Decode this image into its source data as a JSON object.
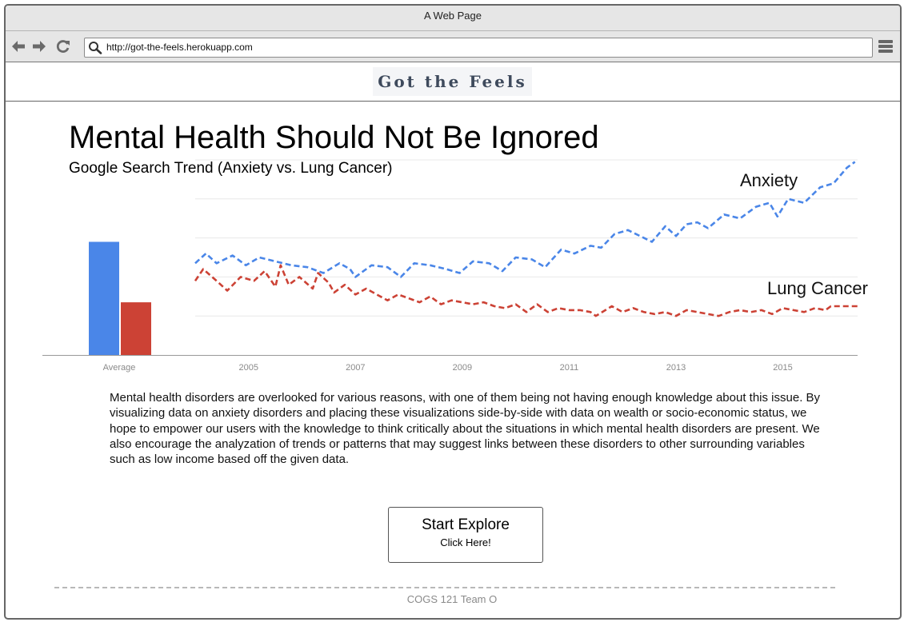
{
  "window": {
    "title": "A Web Page",
    "url": "http://got-the-feels.herokuapp.com",
    "icons": [
      "back-arrow-icon",
      "forward-arrow-icon",
      "reload-icon",
      "search-icon",
      "menu-icon"
    ]
  },
  "site": {
    "brand": "Got the Feels"
  },
  "main": {
    "title": "Mental Health Should Not Be Ignored",
    "subtitle": "Google Search Trend (Anxiety vs. Lung Cancer)",
    "description": "Mental health disorders are overlooked for various reasons, with one of them being not having enough knowledge about this issue. By visualizing data on anxiety disorders and placing these visualizations side-by-side with data on wealth or socio-economic status, we hope to empower our users with the knowledge to think critically about the situations in which mental health disorders are present. We also encourage the analyzation of trends or patterns that may suggest links between these disorders to other surrounding variables such as low income based off the given data.",
    "cta_title": "Start Explore",
    "cta_subtitle": "Click Here!"
  },
  "footer": {
    "text": "COGS 121 Team O"
  },
  "chart_data": {
    "type": "line",
    "x_tick_labels": [
      "2005",
      "2007",
      "2009",
      "2011",
      "2013",
      "2015"
    ],
    "xlim": [
      2004.0,
      2016.4
    ],
    "ylim": [
      0,
      100
    ],
    "grid": true,
    "line_style": "dashed",
    "average_bars": {
      "category_label": "Average",
      "values": [
        {
          "series": "Anxiety",
          "value": 58
        },
        {
          "series": "Lung Cancer",
          "value": 27
        }
      ]
    },
    "series": [
      {
        "name": "Anxiety",
        "color": "#4a86e8",
        "points": [
          [
            2004.0,
            47
          ],
          [
            2004.2,
            52
          ],
          [
            2004.4,
            47
          ],
          [
            2004.7,
            51
          ],
          [
            2004.95,
            46
          ],
          [
            2005.2,
            50
          ],
          [
            2005.5,
            48
          ],
          [
            2005.8,
            46
          ],
          [
            2006.1,
            45
          ],
          [
            2006.4,
            42
          ],
          [
            2006.7,
            47
          ],
          [
            2006.9,
            44
          ],
          [
            2007.0,
            40
          ],
          [
            2007.3,
            46
          ],
          [
            2007.6,
            45
          ],
          [
            2007.85,
            40
          ],
          [
            2008.1,
            47
          ],
          [
            2008.4,
            46
          ],
          [
            2008.7,
            44
          ],
          [
            2008.95,
            42
          ],
          [
            2009.2,
            48
          ],
          [
            2009.5,
            47
          ],
          [
            2009.75,
            43
          ],
          [
            2010.0,
            50
          ],
          [
            2010.3,
            49
          ],
          [
            2010.55,
            45
          ],
          [
            2010.85,
            54
          ],
          [
            2011.1,
            52
          ],
          [
            2011.4,
            56
          ],
          [
            2011.6,
            55
          ],
          [
            2011.85,
            62
          ],
          [
            2012.1,
            64
          ],
          [
            2012.4,
            60
          ],
          [
            2012.55,
            58
          ],
          [
            2012.8,
            66
          ],
          [
            2013.0,
            61
          ],
          [
            2013.2,
            67
          ],
          [
            2013.4,
            68
          ],
          [
            2013.6,
            65
          ],
          [
            2013.9,
            72
          ],
          [
            2014.2,
            70
          ],
          [
            2014.5,
            76
          ],
          [
            2014.75,
            78
          ],
          [
            2014.9,
            71
          ],
          [
            2015.1,
            80
          ],
          [
            2015.4,
            78
          ],
          [
            2015.7,
            86
          ],
          [
            2015.95,
            88
          ],
          [
            2016.2,
            96
          ],
          [
            2016.35,
            99
          ]
        ]
      },
      {
        "name": "Lung Cancer",
        "color": "#cc4235",
        "points": [
          [
            2004.0,
            38
          ],
          [
            2004.15,
            44
          ],
          [
            2004.4,
            38
          ],
          [
            2004.6,
            33
          ],
          [
            2004.85,
            40
          ],
          [
            2005.1,
            38
          ],
          [
            2005.3,
            43
          ],
          [
            2005.5,
            35
          ],
          [
            2005.6,
            46
          ],
          [
            2005.75,
            36
          ],
          [
            2005.95,
            40
          ],
          [
            2006.2,
            34
          ],
          [
            2006.3,
            42
          ],
          [
            2006.5,
            37
          ],
          [
            2006.6,
            32
          ],
          [
            2006.8,
            36
          ],
          [
            2007.0,
            31
          ],
          [
            2007.2,
            34
          ],
          [
            2007.4,
            31
          ],
          [
            2007.6,
            28
          ],
          [
            2007.8,
            31
          ],
          [
            2008.0,
            29
          ],
          [
            2008.2,
            27
          ],
          [
            2008.4,
            30
          ],
          [
            2008.6,
            26
          ],
          [
            2008.8,
            28
          ],
          [
            2009.0,
            27
          ],
          [
            2009.2,
            26
          ],
          [
            2009.4,
            27
          ],
          [
            2009.6,
            25
          ],
          [
            2009.8,
            24
          ],
          [
            2010.0,
            26
          ],
          [
            2010.2,
            22
          ],
          [
            2010.4,
            26
          ],
          [
            2010.6,
            22
          ],
          [
            2010.8,
            24
          ],
          [
            2011.0,
            23
          ],
          [
            2011.2,
            23
          ],
          [
            2011.4,
            22
          ],
          [
            2011.5,
            20
          ],
          [
            2011.8,
            25
          ],
          [
            2012.0,
            22
          ],
          [
            2012.2,
            24
          ],
          [
            2012.4,
            22
          ],
          [
            2012.6,
            21
          ],
          [
            2012.8,
            22
          ],
          [
            2013.0,
            20
          ],
          [
            2013.2,
            23
          ],
          [
            2013.4,
            22
          ],
          [
            2013.6,
            21
          ],
          [
            2013.8,
            20
          ],
          [
            2014.0,
            22
          ],
          [
            2014.2,
            23
          ],
          [
            2014.4,
            22
          ],
          [
            2014.6,
            23
          ],
          [
            2014.8,
            21
          ],
          [
            2015.0,
            24
          ],
          [
            2015.2,
            23
          ],
          [
            2015.4,
            22
          ],
          [
            2015.6,
            24
          ],
          [
            2015.8,
            23
          ],
          [
            2015.9,
            25
          ],
          [
            2016.1,
            25
          ],
          [
            2016.4,
            25
          ]
        ]
      }
    ]
  }
}
